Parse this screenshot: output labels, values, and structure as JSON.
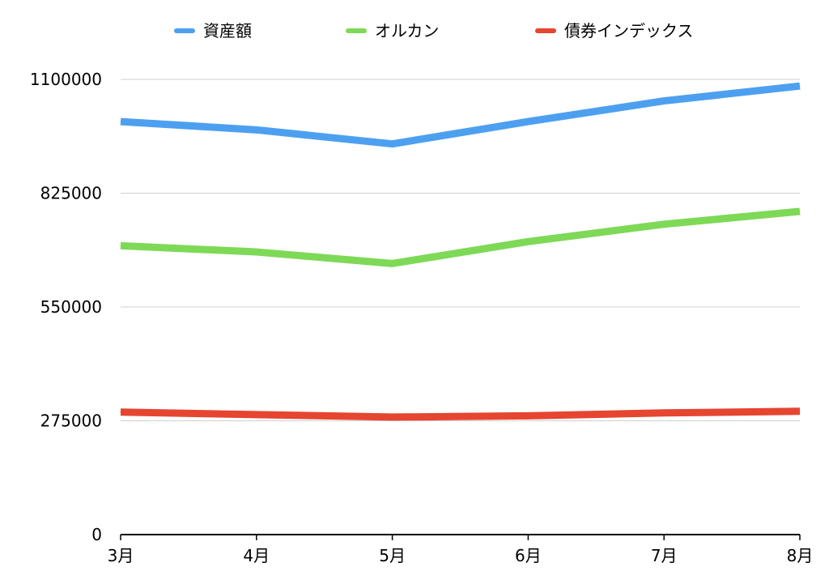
{
  "chart_data": {
    "type": "line",
    "title": "",
    "xlabel": "",
    "ylabel": "",
    "categories": [
      "3月",
      "4月",
      "5月",
      "6月",
      "7月",
      "8月"
    ],
    "ylim": [
      0,
      1100000
    ],
    "yticks": [
      0,
      275000,
      550000,
      825000,
      1100000
    ],
    "ytick_labels": [
      "0",
      "275000",
      "550000",
      "825000",
      "1100000"
    ],
    "grid": true,
    "legend_position": "top",
    "series": [
      {
        "name": "資産額",
        "color": "#4da0f0",
        "values": [
          998000,
          978000,
          944000,
          998000,
          1048000,
          1084000
        ]
      },
      {
        "name": "オルカン",
        "color": "#7ed957",
        "values": [
          698000,
          683000,
          655000,
          708000,
          750000,
          781000
        ]
      },
      {
        "name": "債券インデックス",
        "color": "#e64530",
        "values": [
          296000,
          290000,
          284000,
          287000,
          294000,
          298000
        ]
      }
    ]
  }
}
